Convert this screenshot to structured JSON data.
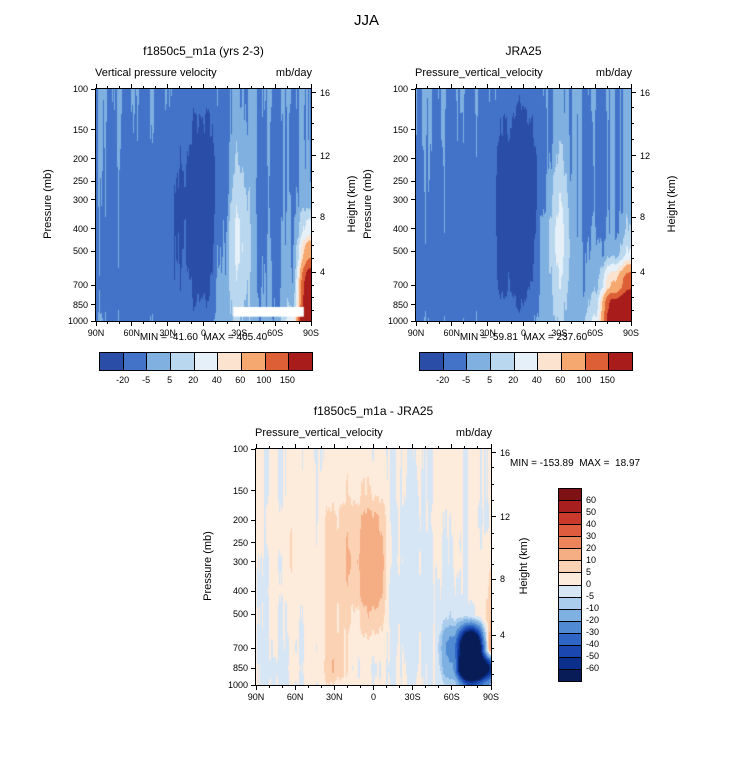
{
  "figure_title": "JJA",
  "axes": {
    "pressure_label": "Pressure (mb)",
    "height_label": "Height (km)",
    "pressure_ticks": [
      100,
      150,
      200,
      250,
      300,
      400,
      500,
      700,
      850,
      1000
    ],
    "height_ticks": [
      {
        "km": 16,
        "p": 103.5
      },
      {
        "km": 12,
        "p": 194
      },
      {
        "km": 8,
        "p": 356.5
      },
      {
        "km": 4,
        "p": 616.6
      }
    ],
    "height_minor_p": [
      899,
      795,
      701,
      540,
      472,
      411,
      308,
      265,
      227,
      165,
      141,
      120
    ],
    "lat_ticks": [
      {
        "label": "90N",
        "lat": 90
      },
      {
        "label": "60N",
        "lat": 60
      },
      {
        "label": "30N",
        "lat": 30
      },
      {
        "label": "0",
        "lat": 0
      },
      {
        "label": "30S",
        "lat": -30
      },
      {
        "label": "60S",
        "lat": -60
      },
      {
        "label": "90S",
        "lat": -90
      }
    ]
  },
  "top_colorbar": {
    "levels": [
      -20,
      -5,
      5,
      20,
      40,
      60,
      100,
      150
    ],
    "labels": [
      "-20",
      "-5",
      "5",
      "20",
      "40",
      "60",
      "100",
      "150"
    ],
    "colors": [
      "#2a4da8",
      "#4273c8",
      "#7fb0e0",
      "#b9d7ee",
      "#e6f0f8",
      "#fbe3cf",
      "#f5a870",
      "#dd5f36",
      "#a81c1c"
    ]
  },
  "diff_colorbar": {
    "levels": [
      -60,
      -50,
      -40,
      -30,
      -20,
      -10,
      -5,
      0,
      5,
      10,
      20,
      30,
      40,
      50,
      60
    ],
    "labels": [
      "60",
      "50",
      "40",
      "30",
      "20",
      "10",
      "5",
      "0",
      "-5",
      "-10",
      "-20",
      "-30",
      "-40",
      "-50",
      "-60"
    ],
    "colors": [
      "#081d58",
      "#0b2f8a",
      "#1a48b0",
      "#2f66c6",
      "#4f8ad2",
      "#7fb0e2",
      "#aacdee",
      "#d6e6f5",
      "#fdebdc",
      "#fbd3b4",
      "#f5ad84",
      "#ec855c",
      "#e05c3e",
      "#c93a2c",
      "#a81f20",
      "#7e1114"
    ]
  },
  "chart_data": [
    {
      "type": "heatmap",
      "title": "f1850c5_m1a (yrs 2-3)",
      "subtitle_left": "Vertical pressure velocity",
      "units": "mb/day",
      "stats_label": "MIN = -41.60  MAX = 405.40",
      "min": -41.6,
      "max": 405.4,
      "x_axis": "latitude",
      "y_axis": "pressure_mb",
      "y_scale": "log",
      "lat_grid": [
        90,
        75,
        60,
        45,
        30,
        15,
        0,
        -15,
        -30,
        -45,
        -60,
        -75,
        -90
      ],
      "pressure_grid": [
        100,
        150,
        200,
        250,
        300,
        400,
        500,
        700,
        850,
        1000
      ],
      "values": [
        [
          -4,
          -5,
          -6,
          -6,
          -7,
          -10,
          -14,
          -8,
          -3,
          -4,
          -6,
          -5,
          -4
        ],
        [
          -5,
          -6,
          -8,
          -8,
          -9,
          -16,
          -24,
          -10,
          -1,
          -5,
          -8,
          -6,
          -4
        ],
        [
          -6,
          -7,
          -9,
          -10,
          -11,
          -20,
          -34,
          -12,
          4,
          -5,
          -8,
          -6,
          -3
        ],
        [
          -7,
          -8,
          -10,
          -10,
          -12,
          -24,
          -40,
          -11,
          10,
          -6,
          -9,
          -6,
          -2
        ],
        [
          -7,
          -8,
          -10,
          -11,
          -13,
          -26,
          -41,
          -10,
          16,
          -6,
          -9,
          -5,
          0
        ],
        [
          -8,
          -9,
          -10,
          -12,
          -14,
          -24,
          -38,
          -8,
          22,
          -6,
          -8,
          -4,
          30
        ],
        [
          -8,
          -9,
          -11,
          -12,
          -14,
          -22,
          -34,
          -6,
          22,
          -5,
          -7,
          -3,
          90
        ],
        [
          -9,
          -10,
          -12,
          -12,
          -15,
          -18,
          -27,
          -4,
          16,
          -4,
          -6,
          0,
          220
        ],
        [
          -8,
          -10,
          -12,
          -10,
          -14,
          -15,
          -20,
          -2,
          10,
          -3,
          -5,
          5,
          250
        ],
        [
          -6,
          -8,
          -10,
          -8,
          -10,
          -10,
          -12,
          0,
          6,
          -2,
          -3,
          30,
          405
        ]
      ],
      "mask_white": {
        "lat_from": -84,
        "lat_to": -25,
        "p_from": 870,
        "p_to": 958
      }
    },
    {
      "type": "heatmap",
      "title": "JRA25",
      "subtitle_left": "Pressure_vertical_velocity",
      "units": "mb/day",
      "stats_label": "MIN = -59.81  MAX = 237.60",
      "min": -59.81,
      "max": 237.6,
      "x_axis": "latitude",
      "y_axis": "pressure_mb",
      "y_scale": "log",
      "lat_grid": [
        90,
        75,
        60,
        45,
        30,
        15,
        0,
        -15,
        -30,
        -45,
        -60,
        -75,
        -90
      ],
      "pressure_grid": [
        100,
        150,
        200,
        250,
        300,
        400,
        500,
        700,
        850,
        1000
      ],
      "values": [
        [
          -4,
          -5,
          -6,
          -6,
          -7,
          -12,
          -15,
          -8,
          -3,
          -4,
          -6,
          -5,
          -4
        ],
        [
          -5,
          -6,
          -8,
          -8,
          -9,
          -20,
          -28,
          -10,
          -1,
          -5,
          -8,
          -6,
          -4
        ],
        [
          -6,
          -7,
          -9,
          -10,
          -11,
          -30,
          -44,
          -12,
          6,
          -5,
          -8,
          -6,
          -4
        ],
        [
          -6,
          -8,
          -10,
          -10,
          -12,
          -36,
          -54,
          -12,
          12,
          -6,
          -9,
          -6,
          -4
        ],
        [
          -7,
          -8,
          -10,
          -11,
          -13,
          -38,
          -58,
          -10,
          18,
          -6,
          -9,
          -6,
          -3
        ],
        [
          -7,
          -9,
          -10,
          -12,
          -14,
          -34,
          -54,
          -6,
          24,
          -5,
          -7,
          -5,
          5
        ],
        [
          -8,
          -9,
          -11,
          -12,
          -14,
          -28,
          -43,
          -6,
          24,
          -4,
          -3,
          -1,
          20
        ],
        [
          -8,
          -10,
          -12,
          -12,
          -15,
          -22,
          -29,
          -4,
          17,
          -4,
          0,
          60,
          140
        ],
        [
          -8,
          -10,
          -12,
          -10,
          -14,
          -16,
          -20,
          -2,
          10,
          -3,
          10,
          170,
          237
        ],
        [
          -6,
          -8,
          -10,
          -8,
          -10,
          -10,
          -12,
          0,
          6,
          -2,
          20,
          200,
          237
        ]
      ]
    },
    {
      "type": "heatmap",
      "title": "f1850c5_m1a - JRA25",
      "subtitle_left": "Pressure_vertical_velocity",
      "units": "mb/day",
      "stats_label": "MIN = -153.89  MAX =  18.97",
      "min": -153.89,
      "max": 18.97,
      "x_axis": "latitude",
      "y_axis": "pressure_mb",
      "y_scale": "log",
      "lat_grid": [
        90,
        75,
        60,
        45,
        30,
        15,
        0,
        -15,
        -30,
        -45,
        -60,
        -75,
        -90
      ],
      "pressure_grid": [
        100,
        150,
        200,
        250,
        300,
        400,
        500,
        700,
        850,
        1000
      ],
      "values": [
        [
          1,
          0,
          2,
          0,
          2,
          2,
          1,
          0,
          0,
          0,
          2,
          0,
          1
        ],
        [
          1,
          0,
          2,
          1,
          3,
          4,
          5,
          0,
          -1,
          0,
          2,
          0,
          1
        ],
        [
          2,
          1,
          3,
          1,
          6,
          8,
          12,
          0,
          -3,
          1,
          1,
          0,
          0
        ],
        [
          1,
          1,
          4,
          1,
          8,
          9,
          16,
          0,
          -3,
          0,
          0,
          0,
          2
        ],
        [
          0,
          0,
          4,
          2,
          9,
          10,
          19,
          0,
          -2,
          0,
          0,
          1,
          3
        ],
        [
          -1,
          1,
          2,
          2,
          8,
          8,
          17,
          -2,
          -3,
          -1,
          -2,
          1,
          6
        ],
        [
          0,
          0,
          1,
          2,
          6,
          5,
          10,
          -1,
          -3,
          -1,
          -4,
          -2,
          8
        ],
        [
          -1,
          0,
          0,
          1,
          8,
          2,
          3,
          0,
          -2,
          0,
          -25,
          -120,
          12
        ],
        [
          0,
          -2,
          1,
          2,
          10,
          1,
          0,
          0,
          -1,
          0,
          -18,
          -154,
          -60
        ],
        [
          0,
          -1,
          0,
          1,
          5,
          2,
          1,
          0,
          0,
          0,
          -6,
          -45,
          -20
        ]
      ]
    }
  ]
}
